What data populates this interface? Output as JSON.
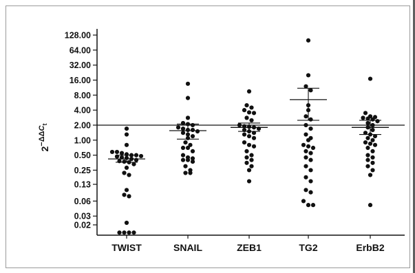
{
  "chart_data": {
    "type": "scatter",
    "subtype": "dot-plot",
    "y_scale": "log2",
    "ylabel_parts": {
      "base": "2",
      "exp_prefix": "−ΔΔ",
      "exp_var": "C",
      "exp_sub": "t"
    },
    "y_ticks": [
      {
        "value": 0.02,
        "label": "0.02"
      },
      {
        "value": 0.03,
        "label": "0.03"
      },
      {
        "value": 0.06,
        "label": "0.06"
      },
      {
        "value": 0.13,
        "label": "0.13"
      },
      {
        "value": 0.25,
        "label": "0.25"
      },
      {
        "value": 0.5,
        "label": "0.50"
      },
      {
        "value": 1,
        "label": "1.00"
      },
      {
        "value": 2,
        "label": "2.00"
      },
      {
        "value": 4,
        "label": "4.00"
      },
      {
        "value": 8,
        "label": "8.00"
      },
      {
        "value": 16,
        "label": "16.00"
      },
      {
        "value": 32,
        "label": "32.00"
      },
      {
        "value": 64,
        "label": "64.00"
      },
      {
        "value": 128,
        "label": "128.00"
      }
    ],
    "ylim": [
      0.015,
      128
    ],
    "reference_line": 2,
    "categories": [
      "TWIST",
      "SNAIL",
      "ZEB1",
      "TG2",
      "ErbB2"
    ],
    "groups": [
      {
        "name": "TWIST",
        "mean": 0.42,
        "error_low": 0.36,
        "error_high": 0.5,
        "values": [
          1.7,
          1.3,
          0.8,
          0.58,
          0.58,
          0.55,
          0.52,
          0.5,
          0.5,
          0.48,
          0.47,
          0.45,
          0.44,
          0.42,
          0.4,
          0.38,
          0.37,
          0.36,
          0.33,
          0.28,
          0.22,
          0.2,
          0.1,
          0.08,
          0.075,
          0.022,
          0.014,
          0.014,
          0.014,
          0.014
        ]
      },
      {
        "name": "SNAIL",
        "mean": 1.55,
        "error_low": 1.05,
        "error_high": 2.1,
        "values": [
          13.5,
          7.0,
          2.8,
          2.2,
          2.1,
          2.0,
          1.8,
          1.7,
          1.6,
          1.6,
          1.5,
          1.4,
          1.3,
          1.2,
          1.1,
          0.9,
          0.8,
          0.7,
          0.7,
          0.6,
          0.5,
          0.45,
          0.43,
          0.4,
          0.4,
          0.37,
          0.3,
          0.25,
          0.22,
          0.22
        ]
      },
      {
        "name": "ZEB1",
        "mean": 1.8,
        "error_low": 1.5,
        "error_high": 2.2,
        "values": [
          9.5,
          5.0,
          4.5,
          4.0,
          3.6,
          3.5,
          2.8,
          2.5,
          2.0,
          1.9,
          1.85,
          1.8,
          1.7,
          1.6,
          1.5,
          1.4,
          1.3,
          1.2,
          1.1,
          0.9,
          0.8,
          0.75,
          0.6,
          0.5,
          0.45,
          0.4,
          0.35,
          0.3,
          0.25,
          0.15
        ]
      },
      {
        "name": "TG2",
        "mean": 6.5,
        "error_low": 2.5,
        "error_high": 11.0,
        "values": [
          100,
          20,
          12,
          10,
          5.0,
          4.0,
          3.0,
          2.6,
          2.0,
          1.7,
          1.3,
          1.1,
          1.0,
          0.8,
          0.75,
          0.7,
          0.6,
          0.55,
          0.45,
          0.4,
          0.3,
          0.25,
          0.18,
          0.15,
          0.1,
          0.09,
          0.06,
          0.05,
          0.05
        ]
      },
      {
        "name": "ErbB2",
        "mean": 1.8,
        "error_low": 1.3,
        "error_high": 2.5,
        "values": [
          17,
          3.5,
          3.0,
          2.9,
          2.8,
          2.7,
          2.6,
          2.4,
          2.2,
          2.0,
          1.8,
          1.6,
          1.4,
          1.3,
          1.2,
          1.1,
          1.0,
          0.9,
          0.85,
          0.8,
          0.7,
          0.6,
          0.5,
          0.45,
          0.4,
          0.35,
          0.3,
          0.25,
          0.2,
          0.05
        ]
      }
    ]
  }
}
